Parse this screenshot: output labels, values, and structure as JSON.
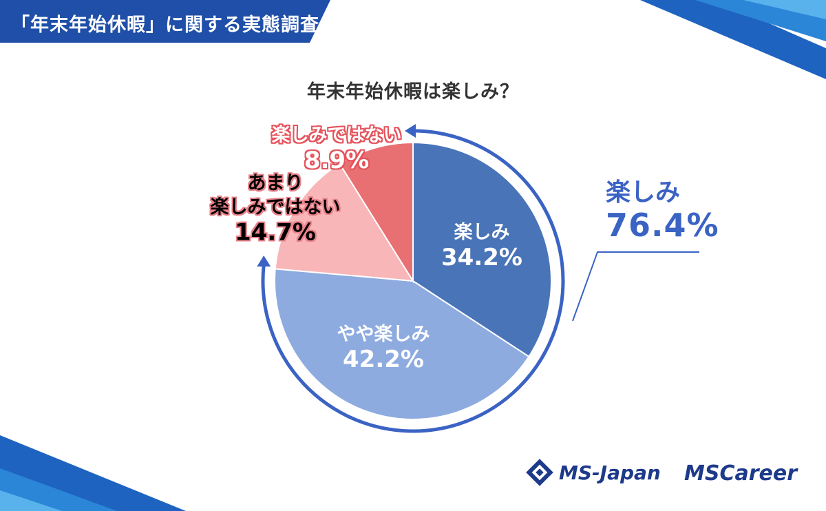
{
  "header": {
    "title": "「年末年始休暇」に関する実態調査"
  },
  "chart_data": {
    "type": "pie",
    "title": "年末年始休暇は楽しみ？",
    "slices": [
      {
        "label": "楽しみ",
        "value": 34.2,
        "value_label": "34.2%",
        "color": "#4a74b8"
      },
      {
        "label": "やや楽しみ",
        "value": 42.2,
        "value_label": "42.2%",
        "color": "#8eabe0"
      },
      {
        "label": "あまり楽しみではない",
        "label_lines": [
          "あまり",
          "楽しみではない"
        ],
        "value": 14.7,
        "value_label": "14.7%",
        "color": "#f8b6b8"
      },
      {
        "label": "楽しみではない",
        "value": 8.9,
        "value_label": "8.9%",
        "color": "#e87073"
      }
    ],
    "start_angle_deg": 0,
    "direction": "clockwise",
    "annotation": {
      "label": "楽しみ",
      "value": 76.4,
      "value_label": "76.4%",
      "color": "#3b63c4"
    }
  },
  "logos": {
    "ms_japan": "MS-Japan",
    "ms_career": "MSCareer"
  },
  "icons": {
    "brand_mark": "diamond-knot-icon",
    "arrow": "arc-arrow-icon"
  }
}
